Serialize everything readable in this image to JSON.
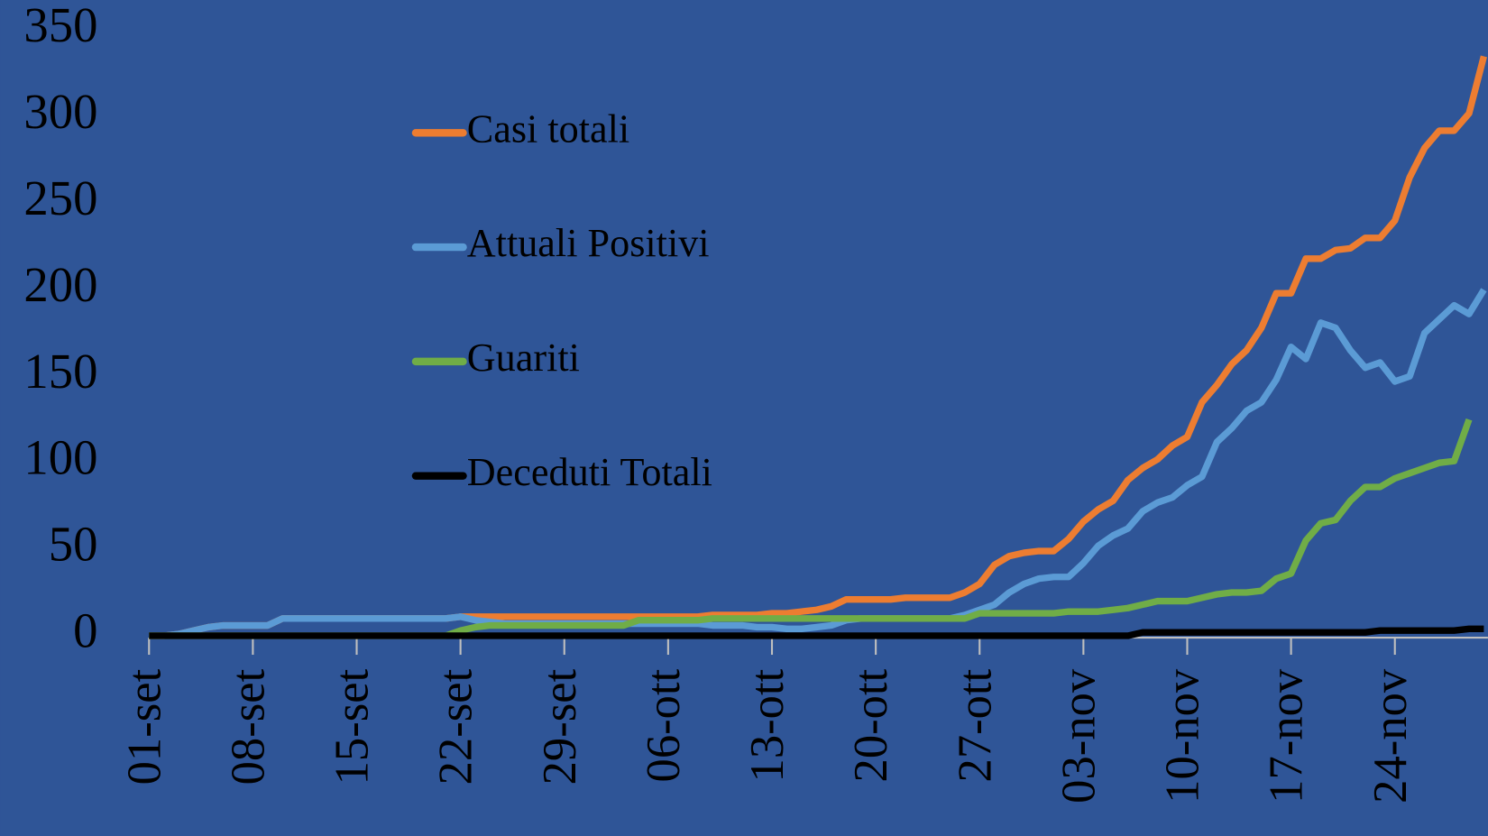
{
  "chart_data": {
    "type": "line",
    "categories": [
      "01-set",
      null,
      null,
      null,
      null,
      null,
      null,
      "08-set",
      null,
      null,
      null,
      null,
      null,
      null,
      "15-set",
      null,
      null,
      null,
      null,
      null,
      null,
      "22-set",
      null,
      null,
      null,
      null,
      null,
      null,
      "29-set",
      null,
      null,
      null,
      null,
      null,
      null,
      "06-ott",
      null,
      null,
      null,
      null,
      null,
      null,
      "13-ott",
      null,
      null,
      null,
      null,
      null,
      null,
      "20-ott",
      null,
      null,
      null,
      null,
      null,
      null,
      "27-ott",
      null,
      null,
      null,
      null,
      null,
      null,
      "03-nov",
      null,
      null,
      null,
      null,
      null,
      null,
      "10-nov",
      null,
      null,
      null,
      null,
      null,
      null,
      "17-nov",
      null,
      null,
      null,
      null,
      null,
      null,
      "24-nov",
      null,
      null,
      null,
      null,
      null,
      null
    ],
    "series": [
      {
        "name": "Casi totali",
        "color": "#ed7d31",
        "values": [
          0,
          0,
          1,
          3,
          5,
          6,
          6,
          6,
          6,
          10,
          10,
          10,
          10,
          10,
          10,
          10,
          10,
          10,
          10,
          10,
          10,
          11,
          11,
          11,
          11,
          11,
          11,
          11,
          11,
          11,
          11,
          11,
          11,
          11,
          11,
          11,
          11,
          11,
          12,
          12,
          12,
          12,
          13,
          13,
          14,
          15,
          17,
          21,
          21,
          21,
          21,
          22,
          22,
          22,
          22,
          25,
          30,
          41,
          46,
          48,
          49,
          49,
          56,
          66,
          73,
          78,
          90,
          97,
          102,
          110,
          115,
          135,
          145,
          157,
          165,
          178,
          198,
          198,
          218,
          218,
          223,
          224,
          230,
          230,
          240,
          265,
          282,
          292,
          292,
          302,
          335
        ]
      },
      {
        "name": "Attuali Positivi",
        "color": "#5b9bd5",
        "values": [
          0,
          0,
          1,
          3,
          5,
          6,
          6,
          6,
          6,
          10,
          10,
          10,
          10,
          10,
          10,
          10,
          10,
          10,
          10,
          10,
          10,
          11,
          9,
          8,
          7,
          7,
          7,
          7,
          7,
          7,
          7,
          7,
          7,
          7,
          7,
          7,
          7,
          7,
          6,
          6,
          6,
          5,
          5,
          4,
          4,
          5,
          6,
          9,
          10,
          10,
          10,
          10,
          10,
          10,
          10,
          12,
          15,
          18,
          25,
          30,
          33,
          34,
          34,
          42,
          52,
          58,
          62,
          72,
          77,
          80,
          87,
          92,
          112,
          120,
          130,
          135,
          148,
          167,
          160,
          181,
          178,
          165,
          155,
          158,
          147,
          150,
          175,
          183,
          191,
          186,
          200
        ]
      },
      {
        "name": "Guariti",
        "color": "#70ad47",
        "values": [
          0,
          0,
          0,
          0,
          0,
          0,
          0,
          0,
          0,
          0,
          0,
          0,
          0,
          0,
          0,
          0,
          0,
          0,
          0,
          0,
          0,
          3,
          5,
          6,
          6,
          6,
          6,
          6,
          6,
          6,
          6,
          6,
          6,
          9,
          9,
          9,
          9,
          9,
          10,
          10,
          10,
          10,
          10,
          10,
          10,
          10,
          10,
          10,
          10,
          10,
          10,
          10,
          10,
          10,
          10,
          10,
          13,
          13,
          13,
          13,
          13,
          13,
          14,
          14,
          14,
          15,
          16,
          18,
          20,
          20,
          20,
          22,
          24,
          25,
          25,
          26,
          33,
          36,
          55,
          65,
          67,
          78,
          86,
          86,
          91,
          94,
          97,
          100,
          101,
          125,
          null
        ]
      },
      {
        "name": "Deceduti Totali",
        "color": "#000000",
        "values": [
          0,
          0,
          0,
          0,
          0,
          0,
          0,
          0,
          0,
          0,
          0,
          0,
          0,
          0,
          0,
          0,
          0,
          0,
          0,
          0,
          0,
          0,
          0,
          0,
          0,
          0,
          0,
          0,
          0,
          0,
          0,
          0,
          0,
          0,
          0,
          0,
          0,
          0,
          0,
          0,
          0,
          0,
          0,
          0,
          0,
          0,
          0,
          0,
          0,
          0,
          0,
          0,
          0,
          0,
          0,
          0,
          0,
          0,
          0,
          0,
          0,
          0,
          0,
          0,
          0,
          0,
          0,
          2,
          2,
          2,
          2,
          2,
          2,
          2,
          2,
          2,
          2,
          2,
          2,
          2,
          2,
          2,
          2,
          3,
          3,
          3,
          3,
          3,
          3,
          4,
          4
        ]
      }
    ],
    "ylim": [
      0,
      350
    ],
    "yticks": [
      0,
      50,
      100,
      150,
      200,
      250,
      300,
      350
    ],
    "grid": false,
    "legend": "left"
  }
}
